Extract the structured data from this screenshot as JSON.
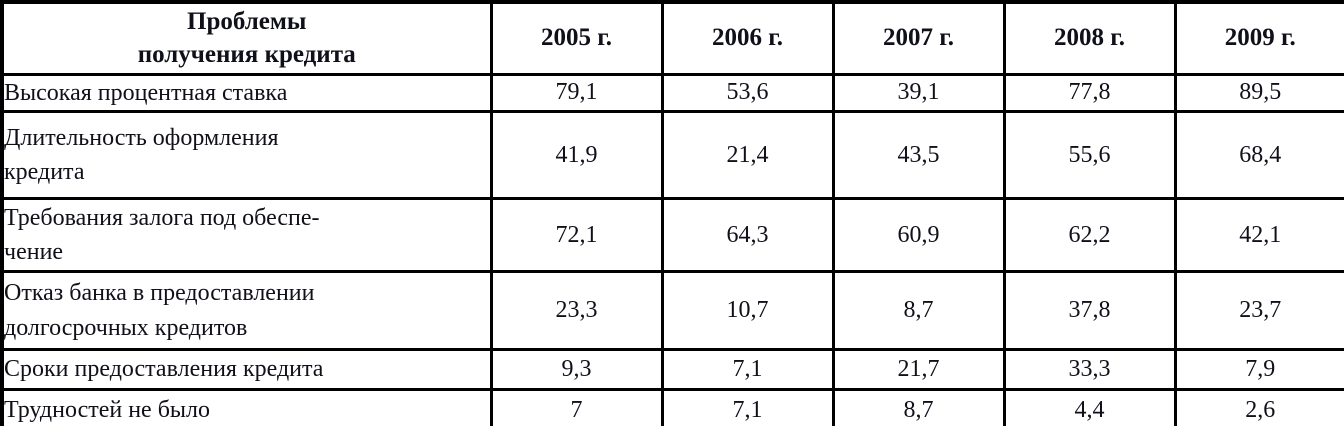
{
  "table": {
    "header": {
      "problem_label": "Проблемы\nполучения кредита",
      "years": [
        "2005 г.",
        "2006 г.",
        "2007 г.",
        "2008 г.",
        "2009 г."
      ]
    },
    "rows": [
      {
        "label": "Высокая процентная ставка",
        "values": [
          "79,1",
          "53,6",
          "39,1",
          "77,8",
          "89,5"
        ]
      },
      {
        "label": "Длительность оформления\nкредита",
        "values": [
          "41,9",
          "21,4",
          "43,5",
          "55,6",
          "68,4"
        ]
      },
      {
        "label": "Требования залога под обеспе-\nчение",
        "values": [
          "72,1",
          "64,3",
          "60,9",
          "62,2",
          "42,1"
        ]
      },
      {
        "label": "Отказ банка в предоставлении\nдолгосрочных кредитов",
        "values": [
          "23,3",
          "10,7",
          "8,7",
          "37,8",
          "23,7"
        ]
      },
      {
        "label": "Сроки предоставления кредита",
        "values": [
          "9,3",
          "7,1",
          "21,7",
          "33,3",
          "7,9"
        ]
      },
      {
        "label": "Трудностей не было",
        "values": [
          "7",
          "7,1",
          "8,7",
          "4,4",
          "2,6"
        ]
      }
    ]
  },
  "colors": {
    "border": "#000000",
    "text": "#10101a",
    "background": "#ffffff"
  },
  "chart_data": {
    "type": "table",
    "title": "Проблемы получения кредита",
    "categories": [
      "2005 г.",
      "2006 г.",
      "2007 г.",
      "2008 г.",
      "2009 г."
    ],
    "series": [
      {
        "name": "Высокая процентная ставка",
        "values": [
          79.1,
          53.6,
          39.1,
          77.8,
          89.5
        ]
      },
      {
        "name": "Длительность оформления кредита",
        "values": [
          41.9,
          21.4,
          43.5,
          55.6,
          68.4
        ]
      },
      {
        "name": "Требования залога под обеспечение",
        "values": [
          72.1,
          64.3,
          60.9,
          62.2,
          42.1
        ]
      },
      {
        "name": "Отказ банка в предоставлении долгосрочных кредитов",
        "values": [
          23.3,
          10.7,
          8.7,
          37.8,
          23.7
        ]
      },
      {
        "name": "Сроки предоставления кредита",
        "values": [
          9.3,
          7.1,
          21.7,
          33.3,
          7.9
        ]
      },
      {
        "name": "Трудностей не было",
        "values": [
          7,
          7.1,
          8.7,
          4.4,
          2.6
        ]
      }
    ]
  }
}
